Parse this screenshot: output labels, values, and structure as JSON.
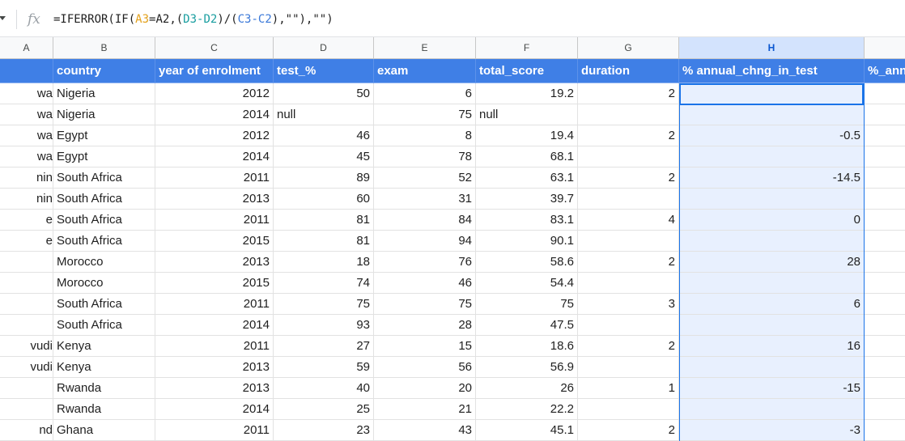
{
  "formula_bar": {
    "icon": "fx-icon",
    "formula_parts": [
      "=IFERROR(IF(",
      "A3",
      "=",
      "A2",
      ",(",
      "D3",
      "-",
      "D2",
      ")/(",
      "C3",
      "-",
      "C2",
      "),\"\"),\"\")"
    ]
  },
  "columns": [
    {
      "letter": "A",
      "selected": false
    },
    {
      "letter": "B",
      "selected": false
    },
    {
      "letter": "C",
      "selected": false
    },
    {
      "letter": "D",
      "selected": false
    },
    {
      "letter": "E",
      "selected": false
    },
    {
      "letter": "F",
      "selected": false
    },
    {
      "letter": "G",
      "selected": false
    },
    {
      "letter": "H",
      "selected": true
    },
    {
      "letter": "",
      "selected": false
    }
  ],
  "header_row": [
    "",
    "country",
    "year of enrolment",
    "test_%",
    "exam",
    "total_score",
    "duration",
    "% annual_chng_in_test",
    "%_annual_chng_in_exam"
  ],
  "rows": [
    [
      "wa",
      "Nigeria",
      "2012",
      "50",
      "6",
      "19.2",
      "2",
      "",
      ""
    ],
    [
      "wa",
      "Nigeria",
      "2014",
      "null",
      "75",
      "null",
      "",
      "",
      ""
    ],
    [
      "wa",
      "Egypt",
      "2012",
      "46",
      "8",
      "19.4",
      "2",
      "-0.5",
      ""
    ],
    [
      "wa",
      "Egypt",
      "2014",
      "45",
      "78",
      "68.1",
      "",
      "",
      ""
    ],
    [
      "nin",
      "South Africa",
      "2011",
      "89",
      "52",
      "63.1",
      "2",
      "-14.5",
      ""
    ],
    [
      "nin",
      "South Africa",
      "2013",
      "60",
      "31",
      "39.7",
      "",
      "",
      ""
    ],
    [
      "e",
      "South Africa",
      "2011",
      "81",
      "84",
      "83.1",
      "4",
      "0",
      ""
    ],
    [
      "e",
      "South Africa",
      "2015",
      "81",
      "94",
      "90.1",
      "",
      "",
      ""
    ],
    [
      "",
      "Morocco",
      "2013",
      "18",
      "76",
      "58.6",
      "2",
      "28",
      ""
    ],
    [
      "",
      "Morocco",
      "2015",
      "74",
      "46",
      "54.4",
      "",
      "",
      ""
    ],
    [
      "",
      "South Africa",
      "2011",
      "75",
      "75",
      "75",
      "3",
      "6",
      ""
    ],
    [
      "",
      "South Africa",
      "2014",
      "93",
      "28",
      "47.5",
      "",
      "",
      ""
    ],
    [
      "vudi",
      "Kenya",
      "2011",
      "27",
      "15",
      "18.6",
      "2",
      "16",
      ""
    ],
    [
      "vudi",
      "Kenya",
      "2013",
      "59",
      "56",
      "56.9",
      "",
      "",
      ""
    ],
    [
      "",
      "Rwanda",
      "2013",
      "40",
      "20",
      "26",
      "1",
      "-15",
      ""
    ],
    [
      "",
      "Rwanda",
      "2014",
      "25",
      "21",
      "22.2",
      "",
      "",
      ""
    ],
    [
      "nd",
      "Ghana",
      "2011",
      "23",
      "43",
      "45.1",
      "2",
      "-3",
      ""
    ]
  ],
  "colors": {
    "header_fill": "#3f7fe6",
    "selection_fill": "#e8f0fe",
    "selection_border": "#1a73e8"
  }
}
